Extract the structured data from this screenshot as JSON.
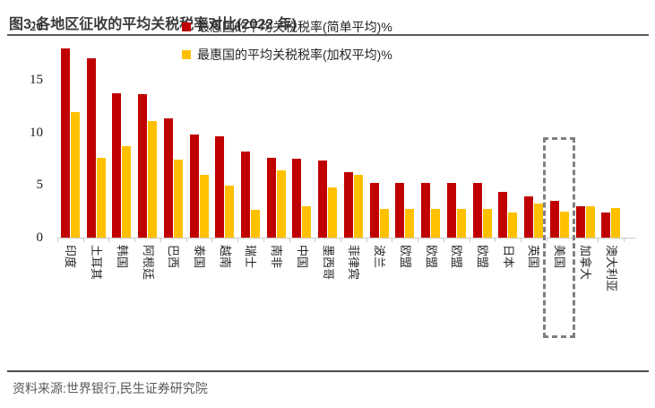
{
  "figure": {
    "title": "图3:各地区征收的平均关税税率对比(2022 年)"
  },
  "chart_data": {
    "type": "bar",
    "categories": [
      "印度",
      "土耳其",
      "韩国",
      "阿根廷",
      "巴西",
      "泰国",
      "越南",
      "瑞士",
      "南非",
      "中国",
      "墨西哥",
      "菲律宾",
      "波兰",
      "欧盟",
      "欧盟",
      "欧盟",
      "欧盟",
      "日本",
      "英国",
      "美国",
      "加拿大",
      "澳大利亚"
    ],
    "series": [
      {
        "name": "最惠国的平均关税税率(简单平均)%",
        "color": "#c00000",
        "values": [
          18.0,
          17.0,
          13.7,
          13.6,
          11.3,
          9.8,
          9.6,
          8.2,
          7.6,
          7.5,
          7.3,
          6.2,
          5.2,
          5.2,
          5.2,
          5.2,
          5.2,
          4.3,
          3.9,
          3.5,
          3.0,
          2.4
        ]
      },
      {
        "name": "最惠国的平均关税税率(加权平均)%",
        "color": "#ffc000",
        "values": [
          11.9,
          7.6,
          8.7,
          11.1,
          7.4,
          6.0,
          4.9,
          2.6,
          6.4,
          3.0,
          4.8,
          6.0,
          2.7,
          2.7,
          2.7,
          2.7,
          2.7,
          2.4,
          3.2,
          2.5,
          3.0,
          2.8
        ]
      }
    ],
    "ylim": [
      0,
      20
    ],
    "yticks": [
      0,
      5,
      10,
      15,
      20
    ],
    "grid": false,
    "legend_position": "top",
    "highlight_category": "美国",
    "highlight_index": 19
  },
  "colors": {
    "simple_avg_bar": "#c00000",
    "weighted_avg_bar": "#ffc000",
    "highlight_box": "#7f7f7f",
    "axis": "#c9c9c9"
  },
  "footer": {
    "source": "资料来源:世界银行,民生证券研究院"
  }
}
